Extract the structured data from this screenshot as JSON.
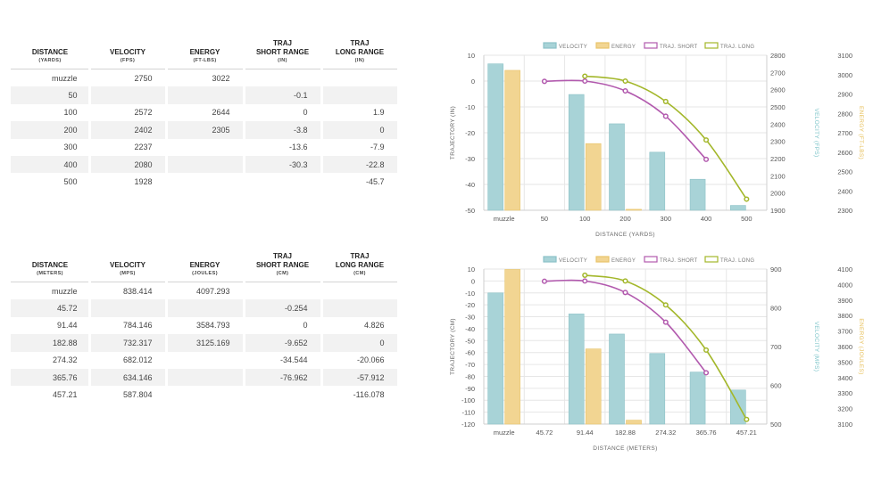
{
  "imperial_table": {
    "headers": [
      {
        "title": [
          "DISTANCE"
        ],
        "unit": "(YARDS)"
      },
      {
        "title": [
          "VELOCITY"
        ],
        "unit": "(FPS)"
      },
      {
        "title": [
          "ENERGY"
        ],
        "unit": "(FT-LBS)"
      },
      {
        "title": [
          "TRAJ",
          "SHORT RANGE"
        ],
        "unit": "(IN)"
      },
      {
        "title": [
          "TRAJ",
          "LONG RANGE"
        ],
        "unit": "(IN)"
      }
    ],
    "rows": [
      [
        "muzzle",
        "2750",
        "3022",
        "",
        ""
      ],
      [
        "50",
        "",
        "",
        "-0.1",
        ""
      ],
      [
        "100",
        "2572",
        "2644",
        "0",
        "1.9"
      ],
      [
        "200",
        "2402",
        "2305",
        "-3.8",
        "0"
      ],
      [
        "300",
        "2237",
        "",
        "-13.6",
        "-7.9"
      ],
      [
        "400",
        "2080",
        "",
        "-30.3",
        "-22.8"
      ],
      [
        "500",
        "1928",
        "",
        "",
        "-45.7"
      ]
    ]
  },
  "metric_table": {
    "headers": [
      {
        "title": [
          "DISTANCE"
        ],
        "unit": "(METERS)"
      },
      {
        "title": [
          "VELOCITY"
        ],
        "unit": "(MPS)"
      },
      {
        "title": [
          "ENERGY"
        ],
        "unit": "(JOULES)"
      },
      {
        "title": [
          "TRAJ",
          "SHORT RANGE"
        ],
        "unit": "(CM)"
      },
      {
        "title": [
          "TRAJ",
          "LONG RANGE"
        ],
        "unit": "(CM)"
      }
    ],
    "rows": [
      [
        "muzzle",
        "838.414",
        "4097.293",
        "",
        ""
      ],
      [
        "45.72",
        "",
        "",
        "-0.254",
        ""
      ],
      [
        "91.44",
        "784.146",
        "3584.793",
        "0",
        "4.826"
      ],
      [
        "182.88",
        "732.317",
        "3125.169",
        "-9.652",
        "0"
      ],
      [
        "274.32",
        "682.012",
        "",
        "-34.544",
        "-20.066"
      ],
      [
        "365.76",
        "634.146",
        "",
        "-76.962",
        "-57.912"
      ],
      [
        "457.21",
        "587.804",
        "",
        "",
        "-116.078"
      ]
    ]
  },
  "colors": {
    "velocity": "#a8d3d7",
    "velocity_stroke": "#8cc2c7",
    "energy": "#f2d592",
    "energy_stroke": "#e8c46a",
    "traj_short": "#b25aae",
    "traj_long": "#a3b72a",
    "grid": "#e6e6e6",
    "axis_text": "#555555",
    "velocity_label": "#7cc4c9",
    "energy_label": "#e7c05c"
  },
  "chart_data": [
    {
      "type": "bar",
      "title": "",
      "legend": [
        "VELOCITY",
        "ENERGY",
        "TRAJ. SHORT",
        "TRAJ. LONG"
      ],
      "legend_position": "top",
      "categories": [
        "muzzle",
        "50",
        "100",
        "200",
        "300",
        "400",
        "500"
      ],
      "xlabel": "DISTANCE (YARDS)",
      "ylabel": "TRAJECTORY (IN)",
      "ylim": [
        -50,
        10
      ],
      "yticks": [
        "10",
        "0",
        "-10",
        "-20",
        "-30",
        "-40",
        "-50"
      ],
      "y2label": "VELOCITY (FPS)",
      "y2lim": [
        1900,
        2800
      ],
      "y2ticks": [
        "2800",
        "2700",
        "2600",
        "2500",
        "2400",
        "2300",
        "2200",
        "2100",
        "2000",
        "1900"
      ],
      "y3label": "ENERGY (FT-LBS)",
      "y3lim": [
        2300,
        3100
      ],
      "y3ticks": [
        "3100",
        "3000",
        "2900",
        "2800",
        "2700",
        "2600",
        "2500",
        "2400",
        "2300"
      ],
      "series": [
        {
          "name": "VELOCITY",
          "kind": "bar",
          "axis": "y2",
          "values": [
            2750,
            null,
            2572,
            2402,
            2237,
            2080,
            1928
          ]
        },
        {
          "name": "ENERGY",
          "kind": "bar",
          "axis": "y3",
          "values": [
            3022,
            null,
            2644,
            2305,
            null,
            null,
            null
          ]
        },
        {
          "name": "TRAJ. SHORT",
          "kind": "line",
          "axis": "y",
          "values": [
            null,
            -0.1,
            0,
            -3.8,
            -13.6,
            -30.3,
            null
          ]
        },
        {
          "name": "TRAJ. LONG",
          "kind": "line",
          "axis": "y",
          "values": [
            null,
            null,
            1.9,
            0,
            -7.9,
            -22.8,
            -45.7
          ]
        }
      ]
    },
    {
      "type": "bar",
      "title": "",
      "legend": [
        "VELOCITY",
        "ENERGY",
        "TRAJ. SHORT",
        "TRAJ. LONG"
      ],
      "legend_position": "top",
      "categories": [
        "muzzle",
        "45.72",
        "91.44",
        "182.88",
        "274.32",
        "365.76",
        "457.21"
      ],
      "xlabel": "DISTANCE (METERS)",
      "ylabel": "TRAJECTORY (CM)",
      "ylim": [
        -120,
        10
      ],
      "yticks": [
        "10",
        "0",
        "-10",
        "-20",
        "-30",
        "-40",
        "-50",
        "-60",
        "-70",
        "-80",
        "-90",
        "-100",
        "-110",
        "-120"
      ],
      "y2label": "VELOCITY (MPS)",
      "y2lim": [
        500,
        900
      ],
      "y2ticks": [
        "900",
        "800",
        "700",
        "600",
        "500"
      ],
      "y3label": "ENERGY (JOULES)",
      "y3lim": [
        3100,
        4100
      ],
      "y3ticks": [
        "4100",
        "4000",
        "3900",
        "3800",
        "3700",
        "3600",
        "3500",
        "3400",
        "3300",
        "3200",
        "3100"
      ],
      "series": [
        {
          "name": "VELOCITY",
          "kind": "bar",
          "axis": "y2",
          "values": [
            838.414,
            null,
            784.146,
            732.317,
            682.012,
            634.146,
            587.804
          ]
        },
        {
          "name": "ENERGY",
          "kind": "bar",
          "axis": "y3",
          "values": [
            4097.293,
            null,
            3584.793,
            3125.169,
            null,
            null,
            null
          ]
        },
        {
          "name": "TRAJ. SHORT",
          "kind": "line",
          "axis": "y",
          "values": [
            null,
            -0.254,
            0,
            -9.652,
            -34.544,
            -76.962,
            null
          ]
        },
        {
          "name": "TRAJ. LONG",
          "kind": "line",
          "axis": "y",
          "values": [
            null,
            null,
            4.826,
            0,
            -20.066,
            -57.912,
            -116.078
          ]
        }
      ]
    }
  ]
}
